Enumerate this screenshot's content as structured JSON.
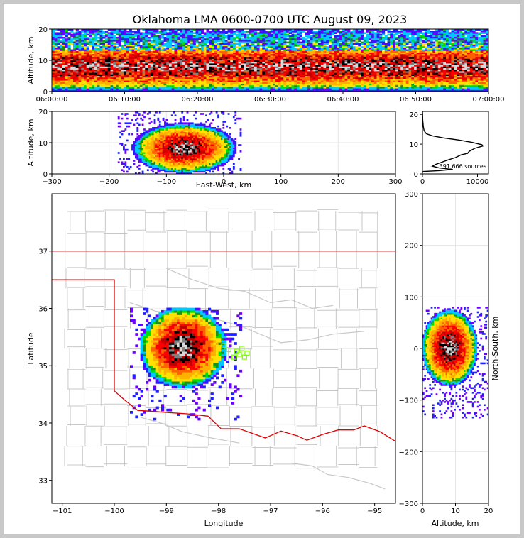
{
  "chart_data": [
    {
      "type": "heatmap",
      "name": "time-altitude",
      "title": "Oklahoma LMA 0600-0700 UTC August 09, 2023",
      "xlabel": "",
      "ylabel": "Altitude, km",
      "x_ticks": [
        "06:00:00",
        "06:10:00",
        "06:20:00",
        "06:30:00",
        "06:40:00",
        "06:50:00",
        "07:00:00"
      ],
      "xlim_minutes": [
        0,
        60
      ],
      "ylim": [
        0,
        20
      ],
      "y_ticks": [
        0,
        10,
        20
      ],
      "density_band_km": [
        3,
        13
      ],
      "sparse_top_km": 20
    },
    {
      "type": "heatmap",
      "name": "east-west-altitude",
      "xlabel": "East-West, km",
      "ylabel": "Altitude, km",
      "xlim": [
        -300,
        300
      ],
      "x_ticks": [
        -300,
        -200,
        -100,
        0,
        100,
        200,
        300
      ],
      "ylim": [
        0,
        20
      ],
      "y_ticks": [
        0,
        10,
        20
      ],
      "core_center": {
        "x": -70,
        "y": 8
      },
      "extent_x_km": [
        -185,
        30
      ]
    },
    {
      "type": "line",
      "name": "altitude-histogram",
      "xlabel": "",
      "ylabel": "",
      "xlim": [
        0,
        12000
      ],
      "x_ticks": [
        0,
        10000
      ],
      "ylim": [
        0,
        21
      ],
      "y_ticks": [
        0,
        10,
        20
      ],
      "annotation": "391,666 sources",
      "series": [
        {
          "name": "sources per altitude",
          "points": [
            [
              0,
              21
            ],
            [
              50,
              18
            ],
            [
              150,
              16
            ],
            [
              300,
              14.5
            ],
            [
              700,
              13.5
            ],
            [
              1800,
              12.8
            ],
            [
              3800,
              12.1
            ],
            [
              6500,
              11.4
            ],
            [
              9000,
              10.6
            ],
            [
              10800,
              9.8
            ],
            [
              11000,
              9.4
            ],
            [
              9500,
              8.6
            ],
            [
              8500,
              7.6
            ],
            [
              8200,
              6.9
            ],
            [
              7000,
              6.4
            ],
            [
              6000,
              5.5
            ],
            [
              4500,
              4.6
            ],
            [
              3300,
              3.8
            ],
            [
              2400,
              3.2
            ],
            [
              1800,
              2.6
            ],
            [
              3000,
              2.0
            ],
            [
              5500,
              1.5
            ],
            [
              3000,
              1.1
            ],
            [
              200,
              0.8
            ],
            [
              0,
              0.5
            ]
          ]
        }
      ]
    },
    {
      "type": "map",
      "name": "plan-view",
      "xlabel": "Longitude",
      "ylabel": "Latitude",
      "xlim": [
        -101.2,
        -94.6
      ],
      "x_ticks": [
        -101,
        -100,
        -99,
        -98,
        -97,
        -96,
        -95
      ],
      "ylim": [
        32.6,
        38.0
      ],
      "y_ticks": [
        33,
        34,
        35,
        36,
        37
      ],
      "storm_center": {
        "lon": -98.7,
        "lat": 35.3
      },
      "stations_count": 8
    },
    {
      "type": "heatmap",
      "name": "altitude-north-south",
      "xlabel": "Altitude, km",
      "ylabel": "North-South, km",
      "xlim": [
        0,
        20
      ],
      "x_ticks": [
        0,
        10,
        20
      ],
      "ylim": [
        -300,
        300
      ],
      "y_ticks": [
        -300,
        -200,
        -100,
        0,
        100,
        200,
        300
      ],
      "core_center": {
        "x": 8,
        "y": 0
      }
    }
  ]
}
